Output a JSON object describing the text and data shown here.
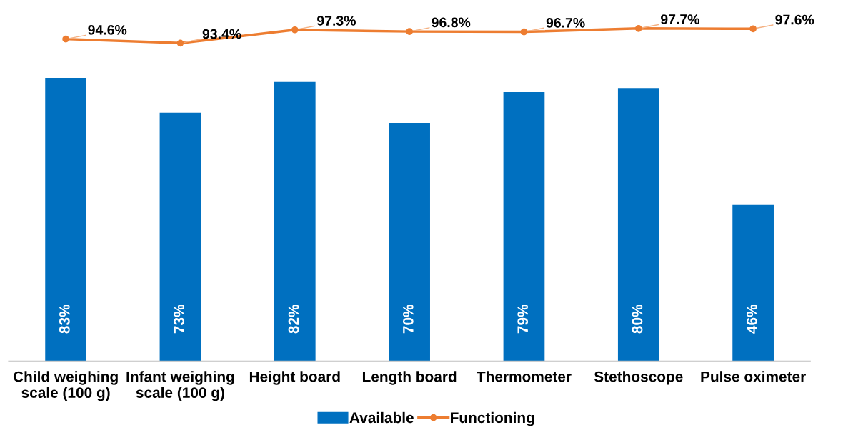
{
  "chart_data": {
    "type": "bar",
    "categories": [
      "Child weighing\nscale (100 g)",
      "Infant weighing\nscale (100 g)",
      "Height board",
      "Length board",
      "Thermometer",
      "Stethoscope",
      "Pulse oximeter"
    ],
    "series": [
      {
        "name": "Available",
        "color": "#0070c0",
        "values": [
          83,
          73,
          82,
          70,
          79,
          80,
          46
        ],
        "value_labels": [
          "83%",
          "73%",
          "82%",
          "70%",
          "79%",
          "80%",
          "46%"
        ]
      },
      {
        "name": "Functioning",
        "type": "line",
        "color": "#ed7d31",
        "marker": "circle",
        "values": [
          94.6,
          93.4,
          97.3,
          96.8,
          96.7,
          97.7,
          97.6
        ],
        "value_labels": [
          "94.6%",
          "93.4%",
          "97.3%",
          "96.8%",
          "96.7%",
          "97.7%",
          "97.6%"
        ]
      }
    ],
    "legend": "bottom",
    "tick_labels": "x",
    "grid": false
  }
}
